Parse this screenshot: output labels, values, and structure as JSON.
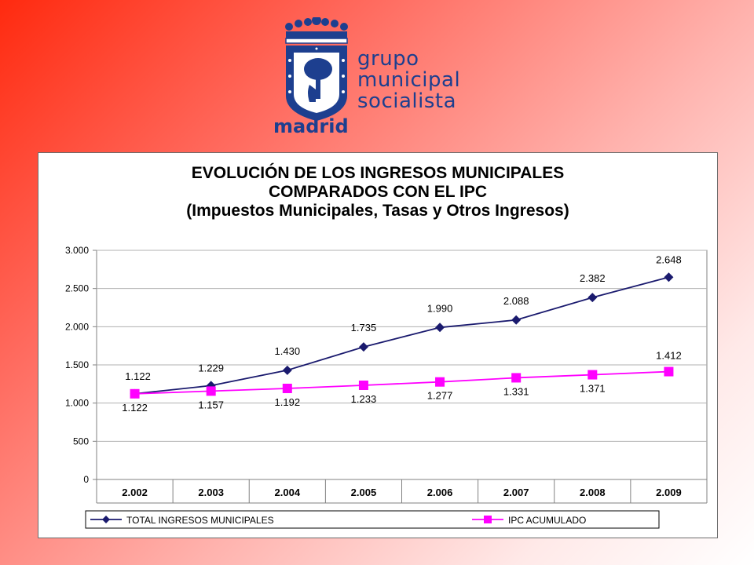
{
  "logo": {
    "lines": [
      "grupo",
      "municipal",
      "socialista"
    ],
    "city": "madrid"
  },
  "chart_data": {
    "type": "line",
    "title_lines": [
      "EVOLUCIÓN DE LOS INGRESOS MUNICIPALES",
      "COMPARADOS CON EL IPC",
      "(Impuestos Municipales, Tasas y Otros Ingresos)"
    ],
    "categories": [
      "2.002",
      "2.003",
      "2.004",
      "2.005",
      "2.006",
      "2.007",
      "2.008",
      "2.009"
    ],
    "series": [
      {
        "name": "TOTAL INGRESOS MUNICIPALES",
        "values": [
          1122,
          1229,
          1430,
          1735,
          1990,
          2088,
          2382,
          2648
        ],
        "labels": [
          "1.122",
          "1.229",
          "1.430",
          "1.735",
          "1.990",
          "2.088",
          "2.382",
          "2.648"
        ],
        "color": "#1a1a6e",
        "marker": "diamond"
      },
      {
        "name": "IPC ACUMULADO",
        "values": [
          1122,
          1157,
          1192,
          1233,
          1277,
          1331,
          1371,
          1412
        ],
        "labels": [
          "1.122",
          "1.157",
          "1.192",
          "1.233",
          "1.277",
          "1.331",
          "1.371",
          "1.412"
        ],
        "color": "#ff00ff",
        "marker": "square"
      }
    ],
    "y_ticks": [
      0,
      500,
      1000,
      1500,
      2000,
      2500,
      3000
    ],
    "y_tick_labels": [
      "0",
      "500",
      "1.000",
      "1.500",
      "2.000",
      "2.500",
      "3.000"
    ],
    "ylim": [
      0,
      3000
    ],
    "grid": true,
    "legend_position": "bottom"
  }
}
